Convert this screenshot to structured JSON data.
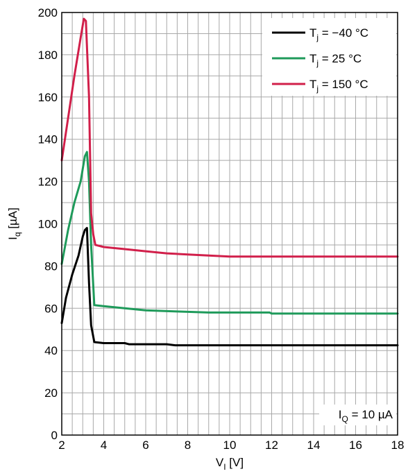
{
  "chart_data": {
    "type": "line",
    "xlabel": "V",
    "xlabel_sub": "I",
    "xlabel_unit": " [V]",
    "ylabel": "I",
    "ylabel_sub": "q",
    "ylabel_unit": " [µA]",
    "xlim": [
      2,
      18
    ],
    "ylim": [
      0,
      200
    ],
    "x_ticks": [
      2,
      4,
      6,
      8,
      10,
      12,
      14,
      16,
      18
    ],
    "y_ticks": [
      0,
      20,
      40,
      60,
      80,
      100,
      120,
      140,
      160,
      180,
      200
    ],
    "grid": true,
    "x_minor_step": 0.5,
    "y_minor_step": 10,
    "legend_position": "top-right",
    "annotation": {
      "main": "I",
      "sub": "Q",
      "rest": " = 10 µA",
      "position": "bottom-right"
    },
    "series": [
      {
        "name": "T = −40 °C",
        "name_main": "T",
        "name_sub": "j",
        "name_rest": " = −40 °C",
        "color": "#000000",
        "x": [
          2.0,
          2.2,
          2.5,
          2.8,
          3.0,
          3.1,
          3.2,
          3.3,
          3.4,
          3.55,
          4.0,
          5.0,
          5.2,
          7.0,
          7.4,
          10.0,
          14.0,
          18.0
        ],
        "y": [
          53,
          65,
          76,
          85,
          94,
          97,
          98,
          72,
          52,
          44,
          43.5,
          43.5,
          43,
          43,
          42.5,
          42.5,
          42.5,
          42.5
        ]
      },
      {
        "name": "T = 25 °C",
        "name_main": "T",
        "name_sub": "j",
        "name_rest": " = 25 °C",
        "color": "#1e9a5a",
        "x": [
          2.0,
          2.3,
          2.6,
          2.9,
          3.1,
          3.2,
          3.3,
          3.4,
          3.55,
          4.0,
          5.0,
          6.0,
          7.5,
          9.0,
          11.9,
          12.0,
          14.0,
          18.0
        ],
        "y": [
          81,
          97,
          110,
          120,
          132,
          134,
          120,
          90,
          61.5,
          61,
          60,
          59,
          58.5,
          58,
          58,
          57.5,
          57.5,
          57.5
        ]
      },
      {
        "name": "T = 150 °C",
        "name_main": "T",
        "name_sub": "j",
        "name_rest": " = 150 °C",
        "color": "#d11f4a",
        "x": [
          2.0,
          2.3,
          2.6,
          2.9,
          3.05,
          3.15,
          3.3,
          3.4,
          3.5,
          3.6,
          4.0,
          5.0,
          6.0,
          7.0,
          8.0,
          9.0,
          10.0,
          14.0,
          18.0
        ],
        "y": [
          130,
          150,
          170,
          188,
          197,
          196,
          160,
          105,
          95,
          90,
          89,
          88,
          87,
          86,
          85.5,
          85,
          84.5,
          84.5,
          84.5
        ]
      }
    ]
  }
}
